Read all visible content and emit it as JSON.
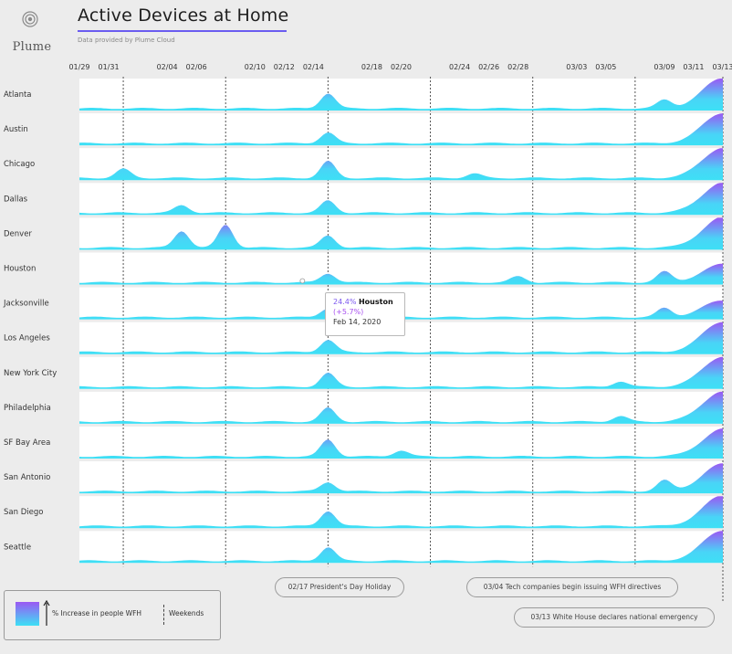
{
  "brand": {
    "logo_text": "Plume"
  },
  "header": {
    "title": "Active Devices at Home",
    "subtitle": "Data provided by Plume Cloud"
  },
  "colors": {
    "low": "#3de0f5",
    "high": "#9a58f3",
    "background": "#ececec"
  },
  "tooltip": {
    "value": "24.4%",
    "city": "Houston",
    "change": "(+5.7%)",
    "date": "Feb 14, 2020"
  },
  "legend": {
    "fill_label": "% Increase in people WFH",
    "dash_label": "Weekends"
  },
  "annotations": [
    "02/17 President's Day Holiday",
    "03/04 Tech companies begin issuing WFH directives",
    "03/13 White House declares national emergency"
  ],
  "chart_data": {
    "type": "area",
    "title": "Active Devices at Home",
    "x_start": "01/29",
    "x_end": "03/13",
    "x_tick_labels": [
      "01/29",
      "01/31",
      "02/04",
      "02/06",
      "02/10",
      "02/12",
      "02/14",
      "02/18",
      "02/20",
      "02/24",
      "02/26",
      "02/28",
      "03/03",
      "03/05",
      "03/09",
      "03/11",
      "03/13"
    ],
    "marked_dates": [
      "02/01",
      "02/08",
      "02/15",
      "02/22",
      "02/29",
      "03/07",
      "03/13"
    ],
    "series_label": "% Increase in people WFH",
    "series": [
      {
        "name": "Atlanta",
        "peaks": [
          {
            "date": "02/15",
            "value": 0.5
          },
          {
            "date": "03/09",
            "value": 0.28
          },
          {
            "date": "03/13",
            "value": 1
          }
        ]
      },
      {
        "name": "Austin",
        "peaks": [
          {
            "date": "02/15",
            "value": 0.35
          },
          {
            "date": "03/13",
            "value": 1
          }
        ]
      },
      {
        "name": "Chicago",
        "peaks": [
          {
            "date": "02/01",
            "value": 0.3
          },
          {
            "date": "02/15",
            "value": 0.55
          },
          {
            "date": "02/25",
            "value": 0.15
          },
          {
            "date": "03/13",
            "value": 1
          }
        ]
      },
      {
        "name": "Dallas",
        "peaks": [
          {
            "date": "02/05",
            "value": 0.25
          },
          {
            "date": "02/15",
            "value": 0.4
          },
          {
            "date": "03/13",
            "value": 1
          }
        ]
      },
      {
        "name": "Denver",
        "peaks": [
          {
            "date": "02/05",
            "value": 0.55
          },
          {
            "date": "02/08",
            "value": 0.75
          },
          {
            "date": "02/15",
            "value": 0.4
          },
          {
            "date": "03/13",
            "value": 1
          }
        ]
      },
      {
        "name": "Houston",
        "peaks": [
          {
            "date": "02/15",
            "value": 0.3
          },
          {
            "date": "02/28",
            "value": 0.2
          },
          {
            "date": "03/09",
            "value": 0.35
          },
          {
            "date": "03/13",
            "value": 0.6
          }
        ]
      },
      {
        "name": "Jacksonville",
        "peaks": [
          {
            "date": "02/15",
            "value": 0.3
          },
          {
            "date": "03/09",
            "value": 0.3
          },
          {
            "date": "03/13",
            "value": 0.55
          }
        ]
      },
      {
        "name": "Los Angeles",
        "peaks": [
          {
            "date": "02/15",
            "value": 0.4
          },
          {
            "date": "03/13",
            "value": 1
          }
        ]
      },
      {
        "name": "New York City",
        "peaks": [
          {
            "date": "02/15",
            "value": 0.45
          },
          {
            "date": "03/06",
            "value": 0.18
          },
          {
            "date": "03/13",
            "value": 1
          }
        ]
      },
      {
        "name": "Philadelphia",
        "peaks": [
          {
            "date": "02/15",
            "value": 0.45
          },
          {
            "date": "03/06",
            "value": 0.18
          },
          {
            "date": "03/13",
            "value": 1
          }
        ]
      },
      {
        "name": "SF Bay Area",
        "peaks": [
          {
            "date": "02/15",
            "value": 0.55
          },
          {
            "date": "02/20",
            "value": 0.2
          },
          {
            "date": "03/13",
            "value": 0.9
          }
        ]
      },
      {
        "name": "San Antonio",
        "peaks": [
          {
            "date": "02/15",
            "value": 0.3
          },
          {
            "date": "03/09",
            "value": 0.35
          },
          {
            "date": "03/13",
            "value": 0.9
          }
        ]
      },
      {
        "name": "San Diego",
        "peaks": [
          {
            "date": "02/15",
            "value": 0.5
          },
          {
            "date": "03/13",
            "value": 1
          }
        ]
      },
      {
        "name": "Seattle",
        "peaks": [
          {
            "date": "02/15",
            "value": 0.45
          },
          {
            "date": "03/13",
            "value": 1
          }
        ]
      }
    ]
  }
}
